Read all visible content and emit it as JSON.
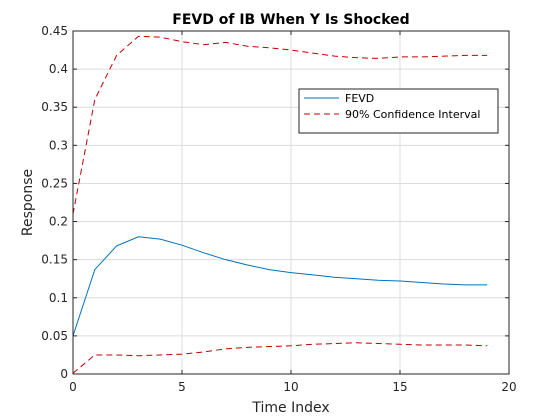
{
  "chart_data": {
    "type": "line",
    "title": "FEVD of IB When Y Is Shocked",
    "xlabel": "Time Index",
    "ylabel": "Response",
    "xlim": [
      0,
      20
    ],
    "ylim": [
      0,
      0.45
    ],
    "xticks": [
      0,
      5,
      10,
      15,
      20
    ],
    "yticks": [
      0,
      0.05,
      0.1,
      0.15,
      0.2,
      0.25,
      0.3,
      0.35,
      0.4,
      0.45
    ],
    "grid": true,
    "legend_position": "top-right",
    "series": [
      {
        "name": "FEVD",
        "style": "solid",
        "color": "#0072BD",
        "x": [
          0,
          1,
          2,
          3,
          4,
          5,
          6,
          7,
          8,
          9,
          10,
          11,
          12,
          13,
          14,
          15,
          16,
          17,
          18,
          19
        ],
        "y": [
          0.05,
          0.137,
          0.168,
          0.18,
          0.177,
          0.169,
          0.159,
          0.15,
          0.143,
          0.137,
          0.133,
          0.13,
          0.127,
          0.125,
          0.123,
          0.122,
          0.12,
          0.118,
          0.117,
          0.117
        ]
      },
      {
        "name": "90% Confidence Interval",
        "style": "dashed",
        "color": "#C00000",
        "x": [
          0,
          1,
          2,
          3,
          4,
          5,
          6,
          7,
          8,
          9,
          10,
          11,
          12,
          13,
          14,
          15,
          16,
          17,
          18,
          19
        ],
        "y": [
          0.21,
          0.36,
          0.418,
          0.443,
          0.442,
          0.436,
          0.432,
          0.435,
          0.43,
          0.428,
          0.425,
          0.421,
          0.417,
          0.415,
          0.414,
          0.416,
          0.416,
          0.417,
          0.418,
          0.418
        ]
      },
      {
        "name": "",
        "style": "dashed",
        "color": "#C00000",
        "x": [
          0,
          1,
          2,
          3,
          4,
          5,
          6,
          7,
          8,
          9,
          10,
          11,
          12,
          13,
          14,
          15,
          16,
          17,
          18,
          19
        ],
        "y": [
          0.001,
          0.025,
          0.025,
          0.024,
          0.025,
          0.026,
          0.029,
          0.033,
          0.035,
          0.036,
          0.037,
          0.039,
          0.04,
          0.041,
          0.04,
          0.039,
          0.038,
          0.038,
          0.038,
          0.037
        ]
      }
    ]
  }
}
